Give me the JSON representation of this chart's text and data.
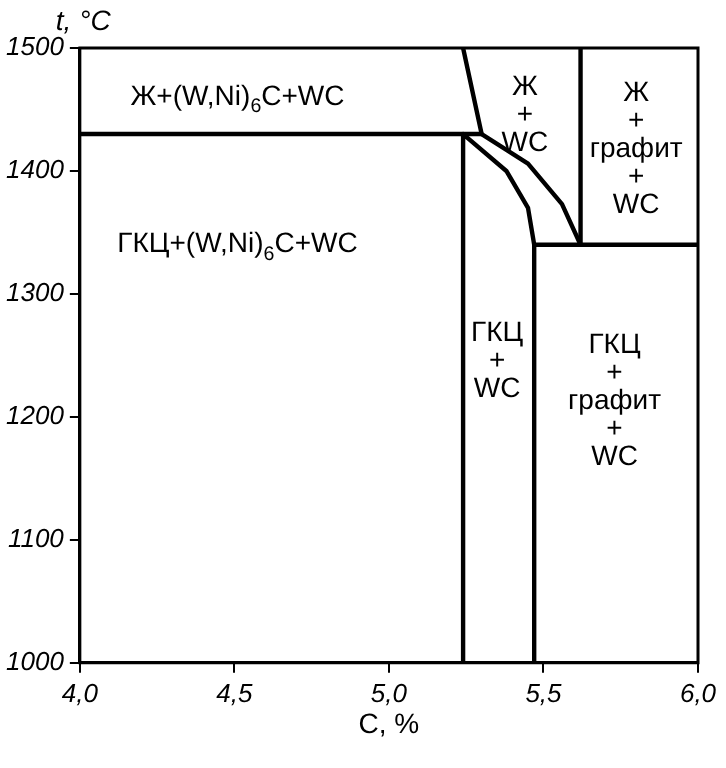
{
  "chart_data": {
    "type": "line",
    "xlabel": "C, %",
    "ylabel": "t, °C",
    "xlim": [
      4.0,
      6.0
    ],
    "ylim": [
      1000,
      1500
    ],
    "xticks": [
      {
        "value": 4.0,
        "label": "4,0"
      },
      {
        "value": 4.5,
        "label": "4,5"
      },
      {
        "value": 5.0,
        "label": "5,0"
      },
      {
        "value": 5.5,
        "label": "5,5"
      },
      {
        "value": 6.0,
        "label": "6,0"
      }
    ],
    "yticks": [
      1000,
      1100,
      1200,
      1300,
      1400,
      1500
    ],
    "grid": false,
    "legend": false,
    "marker": "none",
    "line_style": "solid",
    "series": [
      {
        "color": "#000000",
        "x": [
          5.24,
          5.3,
          5.45,
          5.56,
          5.62,
          6.0
        ],
        "values": [
          1500,
          1430,
          1406,
          1373,
          1340,
          1340
        ]
      },
      {
        "color": "#000000",
        "x": [
          5.62,
          5.62,
          5.47
        ],
        "values": [
          1500,
          1340,
          1340
        ]
      },
      {
        "color": "#000000",
        "x": [
          5.24,
          5.24,
          5.38,
          5.45,
          5.47,
          5.47
        ],
        "values": [
          1000,
          1430,
          1400,
          1370,
          1340,
          1000
        ]
      },
      {
        "color": "#000000",
        "x": [
          4.0,
          5.3
        ],
        "values": [
          1430,
          1430
        ]
      }
    ],
    "annotations": [
      "Ж+(W,Ni)$_{6}$C+WC",
      "ГКЦ+(W,Ni)$_{6}$C+WC",
      "Ж\n+\nWC",
      "Ж\n+\nграфит\n+\nWC",
      "ГКЦ\n+\nWC",
      "ГКЦ\n+\nграфит\n+\nWC"
    ]
  }
}
